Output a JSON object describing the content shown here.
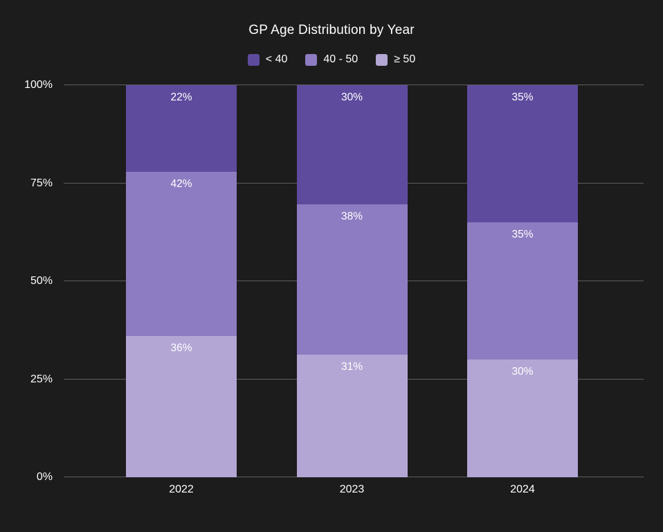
{
  "chart_data": {
    "type": "bar",
    "stacked": true,
    "title": "GP Age Distribution by Year",
    "categories": [
      "2022",
      "2023",
      "2024"
    ],
    "series": [
      {
        "name": "< 40",
        "color": "#5e4b9e",
        "values": [
          22,
          30,
          35
        ]
      },
      {
        "name": "40 - 50",
        "color": "#8d7cc1",
        "values": [
          42,
          38,
          35
        ]
      },
      {
        "name": "≥ 50",
        "color": "#b3a6d4",
        "values": [
          36,
          31,
          30
        ]
      }
    ],
    "value_suffix": "%",
    "y_ticks": [
      0,
      25,
      50,
      75,
      100
    ],
    "ylim": [
      0,
      100
    ],
    "grid": true,
    "legend_position": "top",
    "colors": {
      "background": "#1c1c1c",
      "text": "#ffffff",
      "gridline": "#5e5e5e"
    }
  }
}
